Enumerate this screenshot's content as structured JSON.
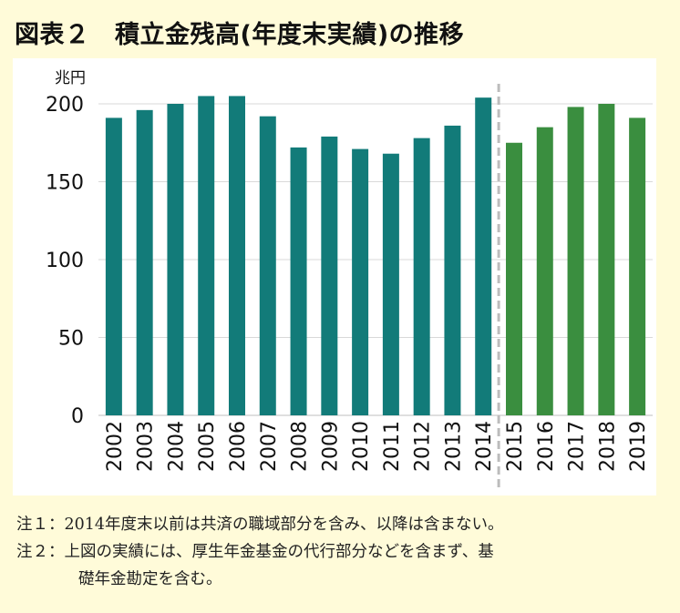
{
  "title": "図表２　積立金残高(年度末実績)の推移",
  "notes": {
    "note1": "注１：2014年度末以前は共済の職域部分を含み、以降は含まない。",
    "note2": "注２：上図の実績には、厚生年金基金の代行部分などを含まず、基",
    "note2_cont": "礎年金勘定を含む。"
  },
  "colors": {
    "series_actual_before": "#127b79",
    "series_actual_after": "#3a8e3f",
    "divider": "#bcbcbc",
    "gridline": "#d9d9d9",
    "background": "#fffbd9"
  },
  "chart_data": {
    "type": "bar",
    "unit": "兆円",
    "categories": [
      "2002",
      "2003",
      "2004",
      "2005",
      "2006",
      "2007",
      "2008",
      "2009",
      "2010",
      "2011",
      "2012",
      "2013",
      "2014",
      "2015",
      "2016",
      "2017",
      "2018",
      "2019"
    ],
    "values": [
      191,
      196,
      200,
      205,
      205,
      192,
      172,
      179,
      171,
      168,
      178,
      186,
      204,
      175,
      185,
      198,
      200,
      191
    ],
    "ylim": [
      0,
      200
    ],
    "yticks": [
      0,
      50,
      100,
      150,
      200
    ],
    "grid": true,
    "divider_after": "2014"
  }
}
